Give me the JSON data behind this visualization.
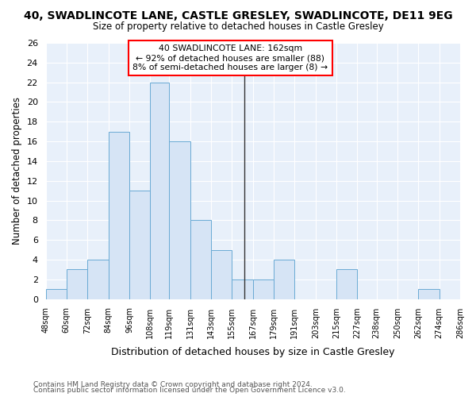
{
  "title": "40, SWADLINCOTE LANE, CASTLE GRESLEY, SWADLINCOTE, DE11 9EG",
  "subtitle": "Size of property relative to detached houses in Castle Gresley",
  "xlabel": "Distribution of detached houses by size in Castle Gresley",
  "ylabel": "Number of detached properties",
  "bar_color": "#d6e4f5",
  "bar_edge_color": "#6aaad4",
  "bin_edges": [
    48,
    60,
    72,
    84,
    96,
    108,
    119,
    131,
    143,
    155,
    167,
    179,
    191,
    203,
    215,
    227,
    238,
    250,
    262,
    274,
    286
  ],
  "bin_labels": [
    "48sqm",
    "60sqm",
    "72sqm",
    "84sqm",
    "96sqm",
    "108sqm",
    "119sqm",
    "131sqm",
    "143sqm",
    "155sqm",
    "167sqm",
    "179sqm",
    "191sqm",
    "203sqm",
    "215sqm",
    "227sqm",
    "238sqm",
    "250sqm",
    "262sqm",
    "274sqm",
    "286sqm"
  ],
  "values": [
    1,
    3,
    4,
    17,
    11,
    22,
    16,
    8,
    5,
    2,
    2,
    4,
    0,
    0,
    3,
    0,
    0,
    0,
    1,
    0
  ],
  "ylim": [
    0,
    26
  ],
  "yticks": [
    0,
    2,
    4,
    6,
    8,
    10,
    12,
    14,
    16,
    18,
    20,
    22,
    24,
    26
  ],
  "vline_x": 162,
  "property_label": "40 SWADLINCOTE LANE: 162sqm",
  "annotation_line1": "← 92% of detached houses are smaller (88)",
  "annotation_line2": "8% of semi-detached houses are larger (8) →",
  "vline_color": "#333333",
  "footnote1": "Contains HM Land Registry data © Crown copyright and database right 2024.",
  "footnote2": "Contains public sector information licensed under the Open Government Licence v3.0.",
  "background_color": "#e8f0fa",
  "grid_color": "#ffffff",
  "fig_bg": "#ffffff"
}
